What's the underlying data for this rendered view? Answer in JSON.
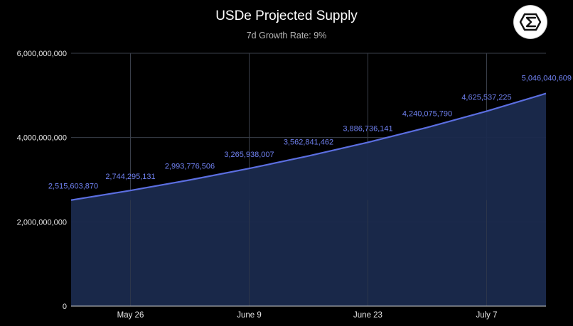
{
  "colors": {
    "background": "#000000",
    "line": "#5b6ee0",
    "area_fill": "#1a2a4d",
    "grid": "#3a3f4a",
    "data_label": "#6f80ef",
    "logo_bg": "#ffffff",
    "logo_icon": "#111111"
  },
  "logo": {
    "icon": "sigma-hexagon-icon"
  },
  "chart_data": {
    "type": "area",
    "title": "USDe Projected Supply",
    "subtitle": "7d Growth Rate: 9%",
    "xlabel": "",
    "ylabel": "",
    "x": [
      "2025-05-19",
      "2025-05-26",
      "2025-06-02",
      "2025-06-09",
      "2025-06-16",
      "2025-06-23",
      "2025-06-30",
      "2025-07-07",
      "2025-07-14"
    ],
    "x_range": [
      "2025-05-19",
      "2025-07-14"
    ],
    "series": [
      {
        "values": [
          2515603870,
          2744295131,
          2993776506,
          3265938007,
          3562841462,
          3886736141,
          4240075790,
          4625537225,
          5046040609
        ],
        "data_labels": [
          "2,515,603,870",
          "2,744,295,131",
          "2,993,776,506",
          "3,265,938,007",
          "3,562,841,462",
          "3,886,736,141",
          "4,240,075,790",
          "4,625,537,225",
          "5,046,040,609"
        ]
      }
    ],
    "ylim": [
      0,
      6000000000
    ],
    "yticks": [
      0,
      2000000000,
      4000000000,
      6000000000
    ],
    "ytick_labels": [
      "0",
      "2,000,000,000",
      "4,000,000,000",
      "6,000,000,000"
    ],
    "xticks": [
      "2025-05-26",
      "2025-06-09",
      "2025-06-23",
      "2025-07-07"
    ],
    "xtick_labels": [
      "May 26",
      "June 9",
      "June 23",
      "July 7"
    ],
    "grid": true,
    "legend": "none"
  }
}
